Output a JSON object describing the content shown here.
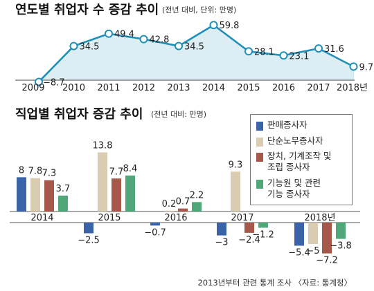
{
  "chart_data": [
    {
      "type": "line",
      "title": "연도별 취업자 수 증감 추이",
      "subtitle": "(전년 대비, 단위: 만명)",
      "x": [
        "2009",
        "2010",
        "2011",
        "2012",
        "2013",
        "2014",
        "2015",
        "2016",
        "2017",
        "2018년"
      ],
      "values": [
        -8.7,
        34.5,
        49.4,
        42.8,
        34.5,
        59.8,
        28.1,
        23.1,
        31.6,
        9.7
      ],
      "value_labels": [
        "−8.7",
        "34.5",
        "49.4",
        "42.8",
        "34.5",
        "59.8",
        "28.1",
        "23.1",
        "31.6",
        "9.7"
      ],
      "ylim": [
        -15,
        65
      ],
      "colors": {
        "line": "#1f8fb7",
        "fill": "#dceef4",
        "marker_fill": "#ffffff"
      }
    },
    {
      "type": "bar",
      "title": "직업별 취업자 증감 추이",
      "subtitle": "(전년 대비: 만명)",
      "categories": [
        "2014",
        "2015",
        "2016",
        "2017",
        "2018년"
      ],
      "ylim": [
        -8,
        14
      ],
      "series": [
        {
          "name": "판매종사자",
          "color": "#3a63a8",
          "values": [
            8,
            -2.5,
            -0.7,
            -3,
            -5.4
          ],
          "labels": [
            "8",
            "−2.5",
            "−0.7",
            "−3",
            "−5.4"
          ]
        },
        {
          "name": "단순노무종사자",
          "color": "#d9ccb0",
          "values": [
            7.8,
            13.8,
            0.2,
            9.3,
            -5
          ],
          "labels": [
            "7.8",
            "13.8",
            "0.2",
            "9.3",
            "−5"
          ]
        },
        {
          "name": "장치, 기계조작 및\n조립 종사자",
          "color": "#a6584a",
          "values": [
            7.3,
            7.7,
            0.7,
            -2.4,
            -7.2
          ],
          "labels": [
            "7.3",
            "7.7",
            "0.7",
            "−2.4",
            "−7.2"
          ]
        },
        {
          "name": "기능원 및 관련\n기능 종사자",
          "color": "#4fa677",
          "values": [
            3.7,
            8.4,
            2.2,
            -1.2,
            -3.8
          ],
          "labels": [
            "3.7",
            "8.4",
            "2.2",
            "−1.2",
            "−3.8"
          ]
        }
      ],
      "footnote": "2013년부터 관련 통계 조사 〈자료: 통계청〉"
    }
  ]
}
